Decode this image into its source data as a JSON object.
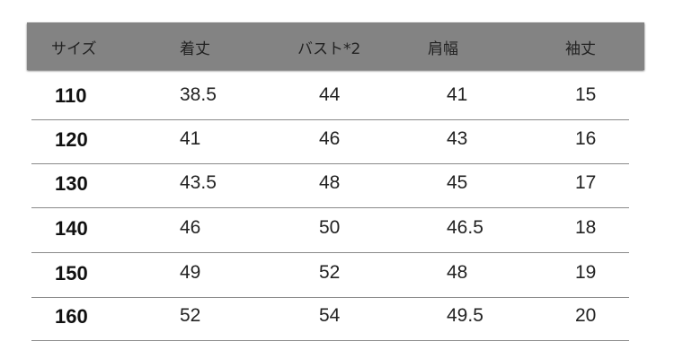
{
  "table": {
    "headers": [
      "サイズ",
      "着丈",
      "バスト*2",
      "肩幅",
      "袖丈"
    ],
    "rows": [
      [
        "110",
        "38.5",
        "44",
        "41",
        "15"
      ],
      [
        "120",
        "41",
        "46",
        "43",
        "16"
      ],
      [
        "130",
        "43.5",
        "48",
        "45",
        "17"
      ],
      [
        "140",
        "46",
        "50",
        "46.5",
        "18"
      ],
      [
        "150",
        "49",
        "52",
        "48",
        "19"
      ],
      [
        "160",
        "52",
        "54",
        "49.5",
        "20"
      ]
    ]
  },
  "colors": {
    "header_bg": "#838383",
    "divider": "#8a8a8a"
  }
}
